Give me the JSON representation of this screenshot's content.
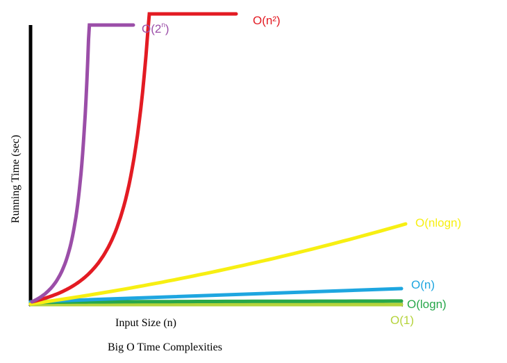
{
  "chart_data": {
    "type": "line",
    "title": "Big O Time Complexities",
    "xlabel": "Input Size (n)",
    "ylabel": "Running Time  (sec)",
    "grid": false,
    "legend": "inline labels at curve ends",
    "series": [
      {
        "name": "O(2ⁿ)",
        "label_base": "O(2",
        "label_sup": "n",
        "label_tail": ")",
        "color": "#9b4ea8",
        "shape": "exponential"
      },
      {
        "name": "O(n²)",
        "label_base": "O(n²)",
        "color": "#e31b23",
        "shape": "quadratic"
      },
      {
        "name": "O(nlogn)",
        "label_base": "O(nlogn)",
        "color": "#f7ef12",
        "shape": "nlogn"
      },
      {
        "name": "O(n)",
        "label_base": "O(n)",
        "color": "#1ea6e0",
        "shape": "linear"
      },
      {
        "name": "O(logn)",
        "label_base": "O(logn)",
        "color": "#27a74a",
        "shape": "logarithmic"
      },
      {
        "name": "O(1)",
        "label_base": "O(1)",
        "color": "#b5d33b",
        "shape": "constant"
      }
    ]
  },
  "colors": {
    "axis": "#000000",
    "background": "#ffffff"
  }
}
